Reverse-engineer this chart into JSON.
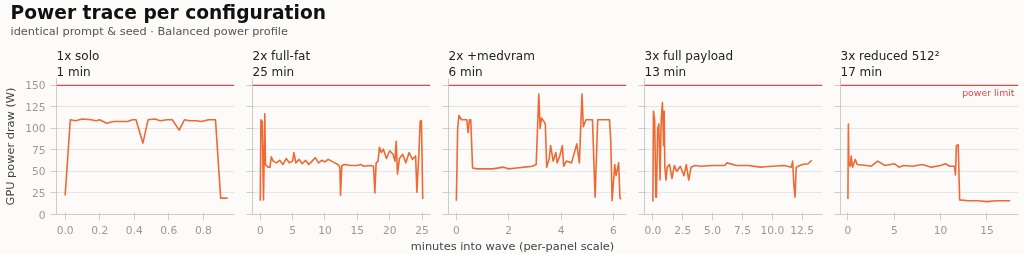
{
  "chart_data": [
    {
      "type": "other",
      "title": "Power trace per configuration",
      "subtitle": "identical prompt & seed · Balanced power profile"
    },
    {
      "type": "line",
      "title": "1x solo",
      "subtitle": "1 min",
      "ylabel": "GPU power draw (W)",
      "xlim": [
        -0.05,
        0.98
      ],
      "xticks": [
        {
          "value": 0,
          "label": "0.0"
        },
        {
          "value": 0.2,
          "label": "0.2"
        },
        {
          "value": 0.4,
          "label": "0.4"
        },
        {
          "value": 0.6,
          "label": "0.6"
        },
        {
          "value": 0.8,
          "label": "0.8"
        }
      ],
      "ylim": [
        0,
        158
      ],
      "yticks": [
        0,
        25,
        50,
        75,
        100,
        125,
        150
      ],
      "grid": "y",
      "ref_lines": [
        {
          "axis": "y",
          "value": 150,
          "color": "#e04848"
        }
      ],
      "series": [
        {
          "color": "#ee6a35",
          "x": [
            0,
            0.03,
            0.06,
            0.1,
            0.15,
            0.18,
            0.2,
            0.24,
            0.28,
            0.32,
            0.36,
            0.39,
            0.41,
            0.45,
            0.48,
            0.52,
            0.55,
            0.59,
            0.62,
            0.66,
            0.69,
            0.72,
            0.76,
            0.79,
            0.83,
            0.87,
            0.9,
            0.94
          ],
          "values": [
            22,
            110,
            109,
            111,
            110,
            109,
            110,
            106,
            108,
            108,
            108,
            110,
            110,
            83,
            110,
            111,
            109,
            110,
            110,
            98,
            110,
            109,
            109,
            108,
            110,
            110,
            19,
            19
          ]
        }
      ]
    },
    {
      "type": "line",
      "title": "2x full-fat",
      "subtitle": "25 min",
      "xlim": [
        -1.2,
        26.3
      ],
      "xticks": [
        0,
        5,
        10,
        15,
        20,
        25
      ],
      "ylim": [
        0,
        158
      ],
      "yticks": [
        0,
        25,
        50,
        75,
        100,
        125,
        150
      ],
      "tick_labels": "x",
      "grid": "y",
      "ref_lines": [
        {
          "axis": "y",
          "value": 150,
          "color": "#e04848"
        }
      ],
      "series": [
        {
          "color": "#ee6a35",
          "x": [
            0,
            0.1,
            0.3,
            0.5,
            0.7,
            0.8,
            1.2,
            1.5,
            1.7,
            2,
            2.5,
            3,
            3.5,
            4,
            4.5,
            5,
            5.2,
            5.5,
            6,
            6.5,
            7,
            7.5,
            8,
            8.5,
            9,
            9.5,
            10,
            10.5,
            11,
            11.5,
            12,
            12.3,
            12.4,
            12.6,
            13,
            14,
            15,
            15.5,
            16,
            17,
            17.5,
            17.7,
            17.9,
            18.2,
            18.4,
            18.7,
            19,
            19.5,
            20,
            20.5,
            20.8,
            21,
            21.2,
            21.5,
            22,
            22.5,
            23,
            23.5,
            24,
            24.2,
            24.5,
            24.7,
            24.9,
            25.1
          ],
          "values": [
            16,
            110,
            108,
            17,
            117,
            58,
            55,
            55,
            67,
            62,
            60,
            63,
            58,
            65,
            60,
            62,
            72,
            60,
            64,
            59,
            63,
            58,
            62,
            66,
            60,
            63,
            61,
            64,
            62,
            60,
            58,
            55,
            22,
            57,
            58,
            57,
            57,
            58,
            56,
            57,
            56,
            25,
            60,
            62,
            78,
            72,
            76,
            65,
            74,
            70,
            62,
            85,
            47,
            65,
            70,
            60,
            72,
            64,
            68,
            26,
            70,
            108,
            109,
            18
          ]
        }
      ]
    },
    {
      "type": "line",
      "title": "2x +medvram",
      "subtitle": "6 min",
      "xlabel": "minutes into wave (per-panel scale)",
      "xlim": [
        -0.3,
        6.5
      ],
      "xticks": [
        0,
        2,
        4,
        6
      ],
      "ylim": [
        0,
        158
      ],
      "yticks": [
        0,
        25,
        50,
        75,
        100,
        125,
        150
      ],
      "tick_labels": "x",
      "grid": "y",
      "ref_lines": [
        {
          "axis": "y",
          "value": 150,
          "color": "#e04848"
        }
      ],
      "series": [
        {
          "color": "#ee6a35",
          "x": [
            0,
            0.05,
            0.1,
            0.2,
            0.4,
            0.45,
            0.5,
            0.55,
            0.62,
            0.8,
            1,
            1.4,
            1.8,
            2,
            2.3,
            2.6,
            2.9,
            3.05,
            3.15,
            3.2,
            3.25,
            3.35,
            3.4,
            3.45,
            3.55,
            3.6,
            3.7,
            3.8,
            3.85,
            3.95,
            4.05,
            4.1,
            4.2,
            4.4,
            4.6,
            4.7,
            4.8,
            4.85,
            4.95,
            5.2,
            5.3,
            5.4,
            5.85,
            5.9,
            5.95,
            6.05,
            6.1,
            6.2,
            6.25,
            6.3
          ],
          "values": [
            16,
            100,
            115,
            110,
            110,
            95,
            110,
            110,
            54,
            53,
            53,
            53,
            55,
            53,
            54,
            55,
            56,
            58,
            140,
            100,
            112,
            108,
            105,
            55,
            65,
            80,
            62,
            72,
            60,
            68,
            80,
            56,
            62,
            60,
            82,
            60,
            140,
            102,
            110,
            110,
            20,
            110,
            110,
            85,
            16,
            58,
            45,
            60,
            19,
            18
          ]
        }
      ]
    },
    {
      "type": "line",
      "title": "3x full payload",
      "subtitle": "13 min",
      "xlim": [
        -0.7,
        14.2
      ],
      "xticks": [
        {
          "value": 0,
          "label": "0.0"
        },
        {
          "value": 2.5,
          "label": "2.5"
        },
        {
          "value": 5,
          "label": "5.0"
        },
        {
          "value": 7.5,
          "label": "7.5"
        },
        {
          "value": 10,
          "label": "10.0"
        },
        {
          "value": 12.5,
          "label": "12.5"
        }
      ],
      "ylim": [
        0,
        158
      ],
      "yticks": [
        0,
        25,
        50,
        75,
        100,
        125,
        150
      ],
      "tick_labels": "x",
      "grid": "y",
      "ref_lines": [
        {
          "axis": "y",
          "value": 150,
          "color": "#e04848"
        }
      ],
      "series": [
        {
          "color": "#ee6a35",
          "x": [
            0,
            0.05,
            0.15,
            0.25,
            0.3,
            0.4,
            0.5,
            0.6,
            0.7,
            0.8,
            0.9,
            0.95,
            1,
            1.1,
            1.2,
            1.4,
            1.6,
            1.8,
            2,
            2.3,
            2.6,
            2.8,
            3,
            3.2,
            3.5,
            4,
            5,
            6,
            6.2,
            7,
            8,
            9,
            10,
            11,
            11.6,
            11.7,
            11.8,
            11.9,
            12,
            12.5,
            13,
            13.3
          ],
          "values": [
            15,
            120,
            110,
            20,
            20,
            100,
            105,
            40,
            110,
            130,
            80,
            120,
            55,
            40,
            55,
            58,
            42,
            57,
            50,
            56,
            45,
            58,
            40,
            55,
            57,
            56,
            57,
            57,
            60,
            57,
            57,
            55,
            56,
            57,
            55,
            62,
            35,
            20,
            55,
            58,
            59,
            63
          ]
        }
      ]
    },
    {
      "type": "line",
      "title": "3x reduced 512²",
      "subtitle": "17 min",
      "xlim": [
        -0.8,
        18.4
      ],
      "xticks": [
        0,
        5,
        10,
        15
      ],
      "ylim": [
        0,
        158
      ],
      "yticks": [
        0,
        25,
        50,
        75,
        100,
        125,
        150
      ],
      "tick_labels": "x",
      "grid": "y",
      "ref_lines": [
        {
          "axis": "y",
          "value": 150,
          "color": "#e04848",
          "label": "power limit"
        }
      ],
      "series": [
        {
          "color": "#ee6a35",
          "x": [
            0,
            0.05,
            0.1,
            0.25,
            0.35,
            0.5,
            0.8,
            1,
            2,
            2.5,
            3.2,
            4,
            5,
            5.5,
            6,
            7,
            8,
            9,
            10,
            10.5,
            11,
            11.5,
            11.6,
            11.7,
            11.9,
            12.05,
            13,
            14,
            15,
            16,
            17,
            17.5
          ],
          "values": [
            18,
            105,
            60,
            56,
            68,
            55,
            64,
            58,
            57,
            56,
            62,
            57,
            59,
            55,
            57,
            56,
            58,
            55,
            57,
            59,
            56,
            56,
            46,
            80,
            81,
            17,
            16,
            16,
            15,
            16,
            16,
            16
          ]
        }
      ]
    }
  ]
}
